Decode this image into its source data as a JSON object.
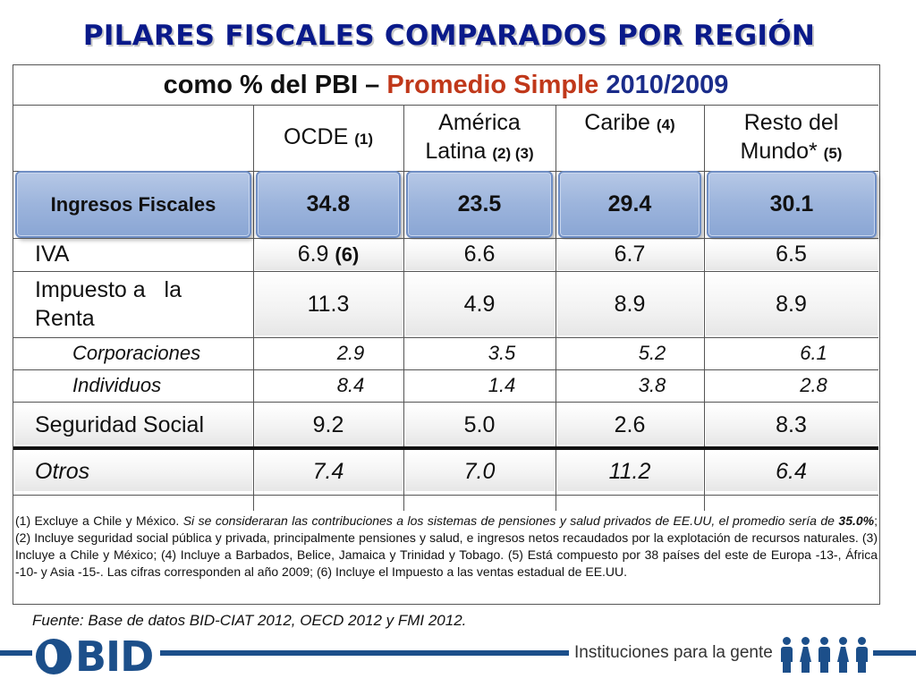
{
  "title": "PILARES FISCALES COMPARADOS POR REGIÓN",
  "subtitle": {
    "prefix": "como % del PBI – ",
    "accent": "Promedio Simple",
    "year": " 2010/2009"
  },
  "columns": [
    {
      "text": "OCDE",
      "note": "(1)"
    },
    {
      "line1": "América",
      "line2": "Latina",
      "note": "(2) (3)"
    },
    {
      "text": "Caribe",
      "note": "(4)"
    },
    {
      "line1": "Resto del",
      "line2": "Mundo*",
      "note": "(5)"
    }
  ],
  "rows": {
    "ingresos": {
      "label": "Ingresos Fiscales",
      "values": [
        "34.8",
        "23.5",
        "29.4",
        "30.1"
      ]
    },
    "iva": {
      "label": "IVA",
      "values": [
        "6.9",
        "6.6",
        "6.7",
        "6.5"
      ],
      "note": "(6)"
    },
    "renta": {
      "label_line1": "Impuesto a   la",
      "label_line2": "Renta",
      "values": [
        "11.3",
        "4.9",
        "8.9",
        "8.9"
      ]
    },
    "corporaciones": {
      "label": "Corporaciones",
      "values": [
        "2.9",
        "3.5",
        "5.2",
        "6.1"
      ]
    },
    "individuos": {
      "label": "Individuos",
      "values": [
        "8.4",
        "1.4",
        "3.8",
        "2.8"
      ]
    },
    "seguridad": {
      "label": "Seguridad Social",
      "values": [
        "9.2",
        "5.0",
        "2.6",
        "8.3"
      ]
    },
    "otros": {
      "label": "Otros",
      "values": [
        "7.4",
        "7.0",
        "11.2",
        "6.4"
      ]
    }
  },
  "notes": {
    "p1": "(1) Excluye a Chile y México. ",
    "p2": "Si se consideraran las contribuciones a los sistemas de pensiones y salud privados de EE.UU, el promedio sería de ",
    "p3": "35.0%",
    "p4": "; (2) Incluye seguridad social pública y privada, principalmente pensiones y salud, e ingresos netos recaudados por  la explotación de recursos naturales. (3) Incluye a Chile y México; (4) Incluye a Barbados, Belice, Jamaica y Trinidad y Tobago. (5) Está compuesto por 38 países del este de Europa -13-, África -10- y Asia -15-. Las cifras corresponden al año 2009; (6) Incluye el Impuesto a las ventas estadual de EE.UU."
  },
  "source": "Fuente: Base de datos BID-CIAT 2012, OECD 2012 y FMI 2012.",
  "footer": {
    "logo": "BID",
    "slogan": "Instituciones para la gente",
    "logo_icon": "globe-icon",
    "people_icon": "people-icon"
  }
}
